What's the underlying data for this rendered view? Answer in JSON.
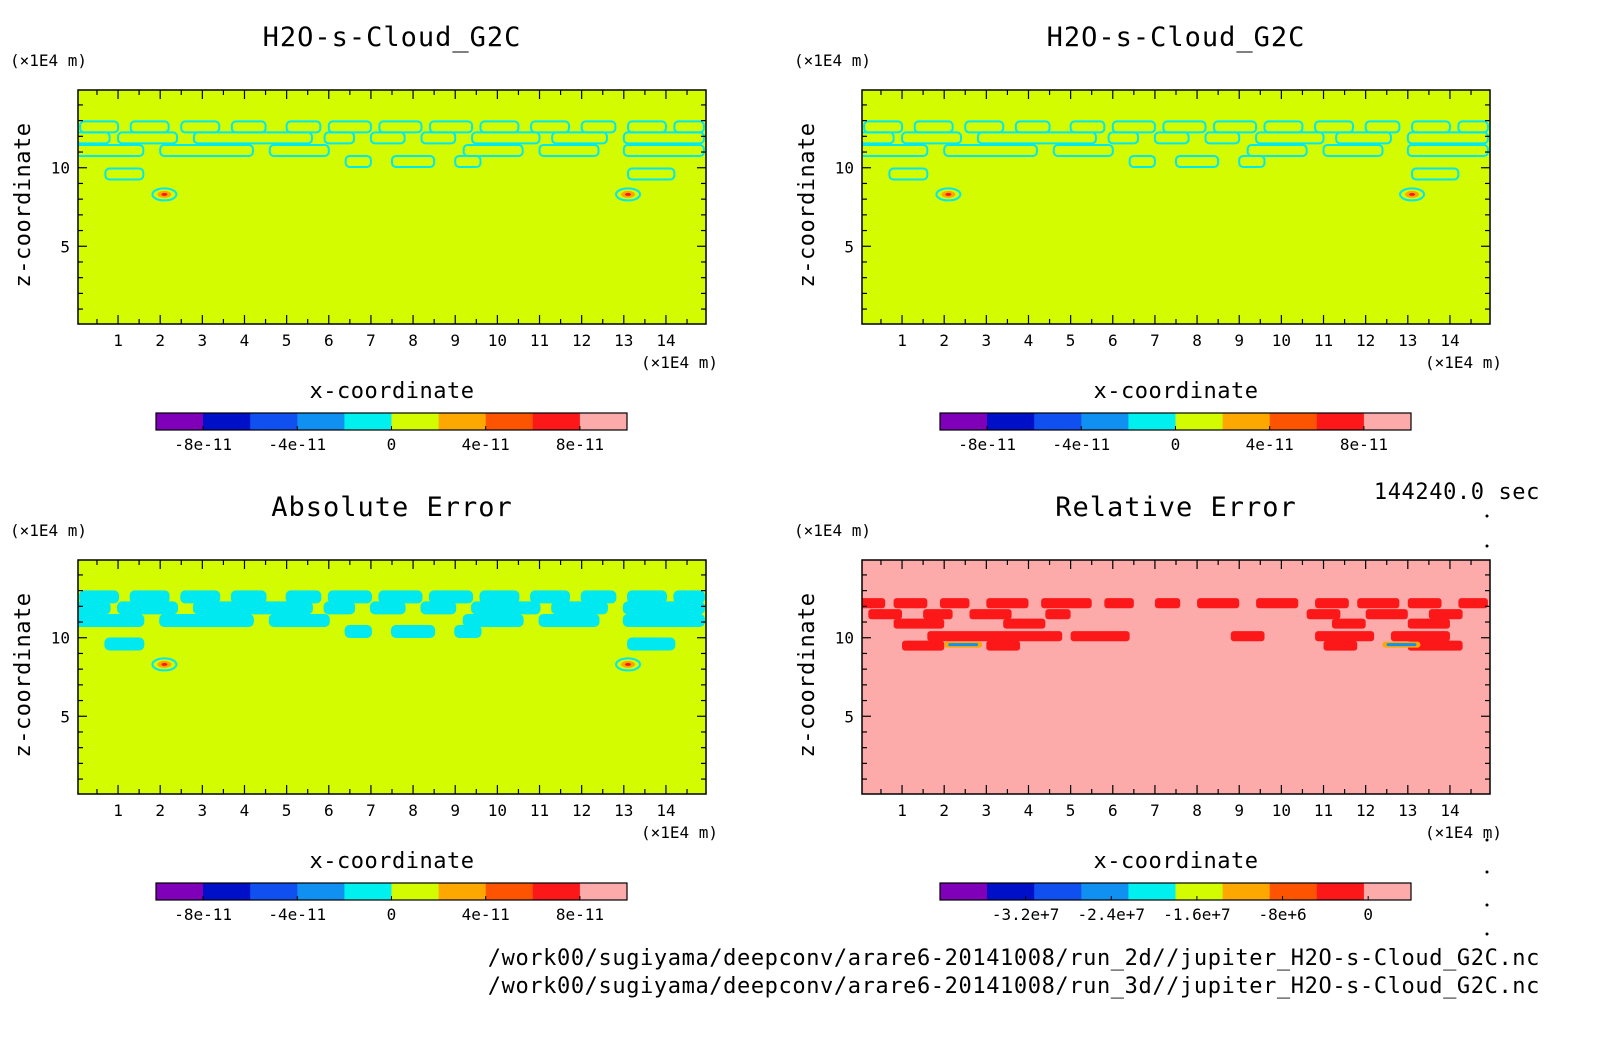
{
  "page": {
    "time_label": "144240.0 sec",
    "footer_lines": [
      "/work00/sugiyama/deepconv/arare6-20141008/run_2d//jupiter_H2O-s-Cloud_G2C.nc",
      "/work00/sugiyama/deepconv/arare6-20141008/run_3d//jupiter_H2O-s-Cloud_G2C.nc"
    ]
  },
  "colors": {
    "levels": [
      "#7f00b8",
      "#0010c8",
      "#1050f0",
      "#1090f0",
      "#00f0f0",
      "#d4fc00",
      "#fca800",
      "#fc5400",
      "#fc1818",
      "#fcaaaa"
    ],
    "background_green": "#d4fc00",
    "background_pink": "#fcaaaa",
    "contour_cyan": "#00e8f0",
    "contour_red": "#fc1818"
  },
  "chart_data": [
    {
      "type": "heatmap",
      "id": "top-left",
      "title": "H2O-s-Cloud_G2C",
      "xlabel": "x-coordinate",
      "ylabel": "z-coordinate",
      "x_unit": "(×1E4 m)",
      "y_unit": "(×1E4 m)",
      "xlim": [
        0.05,
        14.95
      ],
      "ylim": [
        0.05,
        14.95
      ],
      "xticks": [
        1,
        2,
        3,
        4,
        5,
        6,
        7,
        8,
        9,
        10,
        11,
        12,
        13,
        14
      ],
      "yticks": [
        5,
        10
      ],
      "background": "green",
      "features": "cloud-layer-contours",
      "colorbar": {
        "tick_labels": [
          "-8e-11",
          "-4e-11",
          "0",
          "4e-11",
          "8e-11"
        ],
        "range": [
          -1e-10,
          1e-10
        ]
      }
    },
    {
      "type": "heatmap",
      "id": "top-right",
      "title": "H2O-s-Cloud_G2C",
      "xlabel": "x-coordinate",
      "ylabel": "z-coordinate",
      "x_unit": "(×1E4 m)",
      "y_unit": "(×1E4 m)",
      "xlim": [
        0.05,
        14.95
      ],
      "ylim": [
        0.05,
        14.95
      ],
      "xticks": [
        1,
        2,
        3,
        4,
        5,
        6,
        7,
        8,
        9,
        10,
        11,
        12,
        13,
        14
      ],
      "yticks": [
        5,
        10
      ],
      "background": "green",
      "features": "cloud-layer-contours",
      "colorbar": {
        "tick_labels": [
          "-8e-11",
          "-4e-11",
          "0",
          "4e-11",
          "8e-11"
        ],
        "range": [
          -1e-10,
          1e-10
        ]
      }
    },
    {
      "type": "heatmap",
      "id": "bottom-left",
      "title": "Absolute Error",
      "xlabel": "x-coordinate",
      "ylabel": "z-coordinate",
      "x_unit": "(×1E4 m)",
      "y_unit": "(×1E4 m)",
      "xlim": [
        0.05,
        14.95
      ],
      "ylim": [
        0.05,
        14.95
      ],
      "xticks": [
        1,
        2,
        3,
        4,
        5,
        6,
        7,
        8,
        9,
        10,
        11,
        12,
        13,
        14
      ],
      "yticks": [
        5,
        10
      ],
      "background": "green",
      "features": "cloud-layer-filled",
      "colorbar": {
        "tick_labels": [
          "-8e-11",
          "-4e-11",
          "0",
          "4e-11",
          "8e-11"
        ],
        "range": [
          -1e-10,
          1e-10
        ]
      }
    },
    {
      "type": "heatmap",
      "id": "bottom-right",
      "title": "Relative Error",
      "xlabel": "x-coordinate",
      "ylabel": "z-coordinate",
      "x_unit": "(×1E4 m)",
      "y_unit": "(×1E4 m)",
      "xlim": [
        0.05,
        14.95
      ],
      "ylim": [
        0.05,
        14.95
      ],
      "xticks": [
        1,
        2,
        3,
        4,
        5,
        6,
        7,
        8,
        9,
        10,
        11,
        12,
        13,
        14
      ],
      "yticks": [
        5,
        10
      ],
      "background": "pink",
      "features": "relative-error-filled",
      "colorbar": {
        "tick_labels": [
          "-3.2e+7",
          "-2.4e+7",
          "-1.6e+7",
          "-8e+6",
          "0"
        ],
        "range": [
          -40000000.0,
          4000000.0
        ]
      }
    }
  ]
}
